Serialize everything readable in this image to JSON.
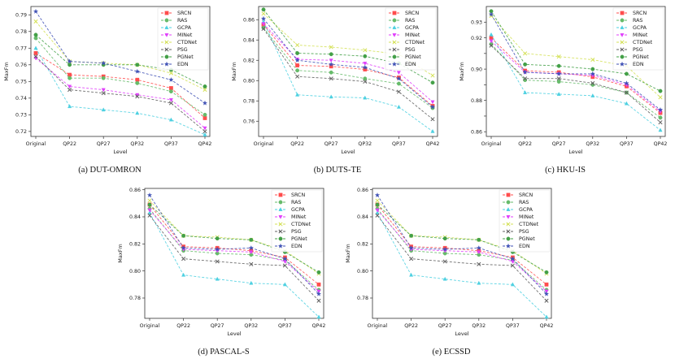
{
  "figure": {
    "captions": [
      "(a) DUT-OMRON",
      "(b) DUTS-TE",
      "(c) HKU-IS",
      "(d) PASCAL-S",
      "(e) ECSSD"
    ]
  },
  "legend_names": [
    "SRCN",
    "RAS",
    "GCPA",
    "MINet",
    "CTDNet",
    "PSG",
    "PGNet",
    "EDN"
  ],
  "series_styles": [
    {
      "name": "SRCN",
      "color": "#ff4d4d",
      "marker": "square"
    },
    {
      "name": "RAS",
      "color": "#66bb6a",
      "marker": "circle"
    },
    {
      "name": "GCPA",
      "color": "#4dd0e1",
      "marker": "triangle-up"
    },
    {
      "name": "MINet",
      "color": "#e040fb",
      "marker": "triangle-down"
    },
    {
      "name": "CTDNet",
      "color": "#d4e157",
      "marker": "x"
    },
    {
      "name": "PSG",
      "color": "#616161",
      "marker": "x"
    },
    {
      "name": "PGNet",
      "color": "#43a047",
      "marker": "circle"
    },
    {
      "name": "EDN",
      "color": "#3f51b5",
      "marker": "star"
    }
  ],
  "chart_data": [
    {
      "type": "line",
      "title": "(a) DUT-OMRON",
      "categories": [
        "Original",
        "QP22",
        "QP27",
        "QP32",
        "QP37",
        "QP42"
      ],
      "xlabel": "Level",
      "ylabel": "MaxFm",
      "ylim": [
        0.717,
        0.795
      ],
      "yticks": [
        0.72,
        0.73,
        0.74,
        0.75,
        0.76,
        0.77,
        0.78,
        0.79
      ],
      "ytick_labels": [
        "0.72",
        "0.73",
        "0.74",
        "0.75",
        "0.76",
        "0.77",
        "0.78",
        "0.79"
      ],
      "series": [
        {
          "name": "SRCN",
          "values": [
            0.767,
            0.754,
            0.753,
            0.751,
            0.746,
            0.728
          ]
        },
        {
          "name": "RAS",
          "values": [
            0.776,
            0.752,
            0.752,
            0.749,
            0.744,
            0.73
          ]
        },
        {
          "name": "GCPA",
          "values": [
            0.77,
            0.735,
            0.733,
            0.731,
            0.727,
            0.718
          ]
        },
        {
          "name": "MINet",
          "values": [
            0.764,
            0.747,
            0.745,
            0.742,
            0.739,
            0.722
          ]
        },
        {
          "name": "CTDNet",
          "values": [
            0.786,
            0.762,
            0.761,
            0.76,
            0.755,
            0.745
          ]
        },
        {
          "name": "PSG",
          "values": [
            0.765,
            0.745,
            0.743,
            0.741,
            0.737,
            0.72
          ]
        },
        {
          "name": "PGNet",
          "values": [
            0.778,
            0.76,
            0.76,
            0.76,
            0.757,
            0.747
          ]
        },
        {
          "name": "EDN",
          "values": [
            0.792,
            0.762,
            0.761,
            0.756,
            0.751,
            0.737
          ]
        }
      ]
    },
    {
      "type": "line",
      "title": "(b) DUTS-TE",
      "categories": [
        "Original",
        "QP22",
        "QP27",
        "QP32",
        "QP37",
        "QP42"
      ],
      "xlabel": "Level",
      "ylabel": "MaxFm",
      "ylim": [
        0.745,
        0.873
      ],
      "yticks": [
        0.76,
        0.78,
        0.8,
        0.82,
        0.84,
        0.86
      ],
      "ytick_labels": [
        "0.76",
        "0.78",
        "0.80",
        "0.82",
        "0.84",
        "0.86"
      ],
      "series": [
        {
          "name": "SRCN",
          "values": [
            0.855,
            0.815,
            0.814,
            0.811,
            0.803,
            0.775
          ]
        },
        {
          "name": "RAS",
          "values": [
            0.852,
            0.81,
            0.808,
            0.802,
            0.797,
            0.773
          ]
        },
        {
          "name": "GCPA",
          "values": [
            0.858,
            0.786,
            0.784,
            0.783,
            0.774,
            0.75
          ]
        },
        {
          "name": "MINet",
          "values": [
            0.856,
            0.821,
            0.82,
            0.817,
            0.808,
            0.779
          ]
        },
        {
          "name": "CTDNet",
          "values": [
            0.866,
            0.835,
            0.833,
            0.83,
            0.826,
            0.805
          ]
        },
        {
          "name": "PSG",
          "values": [
            0.851,
            0.804,
            0.802,
            0.799,
            0.789,
            0.762
          ]
        },
        {
          "name": "PGNet",
          "values": [
            0.87,
            0.827,
            0.826,
            0.824,
            0.817,
            0.798
          ]
        },
        {
          "name": "EDN",
          "values": [
            0.861,
            0.82,
            0.816,
            0.813,
            0.802,
            0.774
          ]
        }
      ]
    },
    {
      "type": "line",
      "title": "(c) HKU-IS",
      "categories": [
        "Original",
        "QP22",
        "QP27",
        "QP32",
        "QP37",
        "QP42"
      ],
      "xlabel": "Level",
      "ylabel": "MaxFm",
      "ylim": [
        0.857,
        0.94
      ],
      "yticks": [
        0.86,
        0.87,
        0.88,
        0.89,
        0.9,
        0.91,
        0.92,
        0.93
      ],
      "ytick_labels": [
        "0.86",
        "",
        "0.88",
        "",
        "0.90",
        "",
        "0.92",
        "0.93"
      ],
      "series": [
        {
          "name": "SRCN",
          "values": [
            0.92,
            0.899,
            0.898,
            0.895,
            0.889,
            0.872
          ]
        },
        {
          "name": "RAS",
          "values": [
            0.916,
            0.893,
            0.892,
            0.89,
            0.885,
            0.869
          ]
        },
        {
          "name": "GCPA",
          "values": [
            0.922,
            0.885,
            0.884,
            0.883,
            0.878,
            0.861
          ]
        },
        {
          "name": "MINet",
          "values": [
            0.918,
            0.898,
            0.897,
            0.896,
            0.89,
            0.873
          ]
        },
        {
          "name": "CTDNet",
          "values": [
            0.934,
            0.91,
            0.908,
            0.906,
            0.902,
            0.882
          ]
        },
        {
          "name": "PSG",
          "values": [
            0.915,
            0.894,
            0.894,
            0.891,
            0.885,
            0.866
          ]
        },
        {
          "name": "PGNet",
          "values": [
            0.937,
            0.903,
            0.902,
            0.9,
            0.897,
            0.886
          ]
        },
        {
          "name": "EDN",
          "values": [
            0.935,
            0.898,
            0.897,
            0.897,
            0.891,
            0.874
          ]
        }
      ]
    },
    {
      "type": "line",
      "title": "(d) PASCAL-S",
      "categories": [
        "Original",
        "QP22",
        "QP27",
        "QP32",
        "QP37",
        "QP42"
      ],
      "xlabel": "Level",
      "ylabel": "MaxFm",
      "ylim": [
        0.765,
        0.861
      ],
      "yticks": [
        0.78,
        0.8,
        0.82,
        0.84,
        0.86
      ],
      "ytick_labels": [
        "0.78",
        "0.80",
        "0.82",
        "0.84",
        "0.86"
      ],
      "series": [
        {
          "name": "SRCN",
          "values": [
            0.849,
            0.818,
            0.817,
            0.815,
            0.81,
            0.79
          ]
        },
        {
          "name": "RAS",
          "values": [
            0.846,
            0.815,
            0.813,
            0.812,
            0.808,
            0.786
          ]
        },
        {
          "name": "GCPA",
          "values": [
            0.843,
            0.797,
            0.794,
            0.791,
            0.79,
            0.766
          ]
        },
        {
          "name": "MINet",
          "values": [
            0.845,
            0.816,
            0.815,
            0.814,
            0.807,
            0.785
          ]
        },
        {
          "name": "CTDNet",
          "values": [
            0.852,
            0.826,
            0.825,
            0.823,
            0.815,
            0.798
          ]
        },
        {
          "name": "PSG",
          "values": [
            0.841,
            0.809,
            0.807,
            0.805,
            0.804,
            0.778
          ]
        },
        {
          "name": "PGNet",
          "values": [
            0.849,
            0.826,
            0.824,
            0.823,
            0.814,
            0.799
          ]
        },
        {
          "name": "EDN",
          "values": [
            0.856,
            0.817,
            0.816,
            0.817,
            0.809,
            0.783
          ]
        }
      ]
    },
    {
      "type": "line",
      "title": "(e) ECSSD",
      "categories": [
        "Original",
        "QP22",
        "QP27",
        "QP32",
        "QP37",
        "QP42"
      ],
      "xlabel": "Level",
      "ylabel": "MaxFm",
      "ylim": [
        0.765,
        0.861
      ],
      "yticks": [
        0.78,
        0.8,
        0.82,
        0.84,
        0.86
      ],
      "ytick_labels": [
        "0.78",
        "0.80",
        "0.82",
        "0.84",
        "0.86"
      ],
      "series": [
        {
          "name": "SRCN",
          "values": [
            0.849,
            0.818,
            0.817,
            0.815,
            0.81,
            0.79
          ]
        },
        {
          "name": "RAS",
          "values": [
            0.846,
            0.815,
            0.813,
            0.812,
            0.808,
            0.786
          ]
        },
        {
          "name": "GCPA",
          "values": [
            0.843,
            0.797,
            0.794,
            0.791,
            0.79,
            0.766
          ]
        },
        {
          "name": "MINet",
          "values": [
            0.845,
            0.816,
            0.815,
            0.814,
            0.807,
            0.785
          ]
        },
        {
          "name": "CTDNet",
          "values": [
            0.852,
            0.826,
            0.825,
            0.823,
            0.815,
            0.798
          ]
        },
        {
          "name": "PSG",
          "values": [
            0.841,
            0.809,
            0.807,
            0.805,
            0.804,
            0.778
          ]
        },
        {
          "name": "PGNet",
          "values": [
            0.849,
            0.826,
            0.824,
            0.823,
            0.814,
            0.799
          ]
        },
        {
          "name": "EDN",
          "values": [
            0.856,
            0.817,
            0.816,
            0.817,
            0.809,
            0.783
          ]
        }
      ]
    }
  ]
}
